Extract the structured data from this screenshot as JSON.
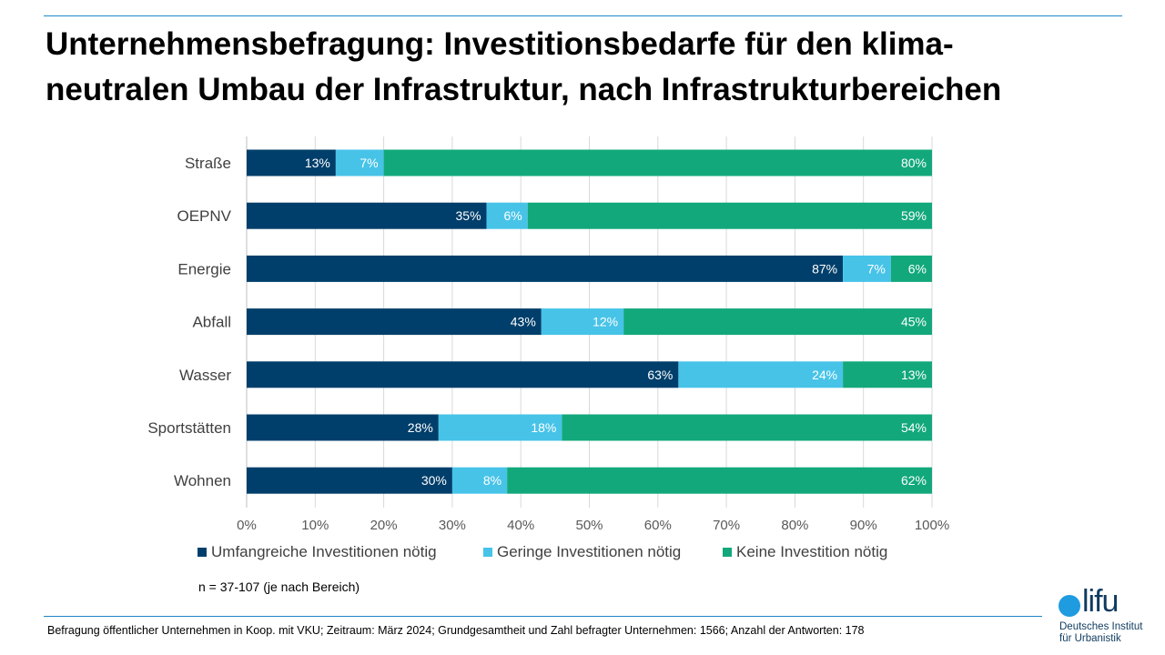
{
  "title": "Unternehmensbefragung: Investitionsbedarfe für den klima-neutralen Umbau der Infrastruktur, nach Infrastrukturbereichen",
  "title_lines": [
    "Unternehmensbefragung: Investitionsbedarfe für den klima-",
    "neutralen Umbau der Infrastruktur, nach Infrastrukturbereichen"
  ],
  "sample_note": "n = 37-107 (je nach Bereich)",
  "footnote": "Befragung öffentlicher Unternehmen in Koop. mit VKU; Zeitraum: März 2024; Grundgesamtheit und Zahl befragter Unternehmen: 1566; Anzahl der Antworten: 178",
  "logo": {
    "wordmark": "lifu",
    "line1": "Deutsches Institut",
    "line2": "für Urbanistik",
    "color": "#0f3b5f",
    "dot_color": "#1f9be0"
  },
  "chart_data": {
    "type": "bar",
    "orientation": "horizontal",
    "stacked": true,
    "categories": [
      "Straße",
      "OEPNV",
      "Energie",
      "Abfall",
      "Wasser",
      "Sportstätten",
      "Wohnen"
    ],
    "series": [
      {
        "name": "Umfangreiche Investitionen nötig",
        "color": "#003f6b",
        "values": [
          13,
          35,
          87,
          43,
          63,
          28,
          30
        ]
      },
      {
        "name": "Geringe Investitionen nötig",
        "color": "#47c3e8",
        "values": [
          7,
          6,
          7,
          12,
          24,
          18,
          8
        ]
      },
      {
        "name": "Keine Investition nötig",
        "color": "#12a87b",
        "values": [
          80,
          59,
          6,
          45,
          13,
          54,
          62
        ]
      }
    ],
    "value_suffix": "%",
    "xlim": [
      0,
      100
    ],
    "x_ticks": [
      "0%",
      "10%",
      "20%",
      "30%",
      "40%",
      "50%",
      "60%",
      "70%",
      "80%",
      "90%",
      "100%"
    ],
    "grid": "vertical",
    "legend_position": "bottom"
  }
}
